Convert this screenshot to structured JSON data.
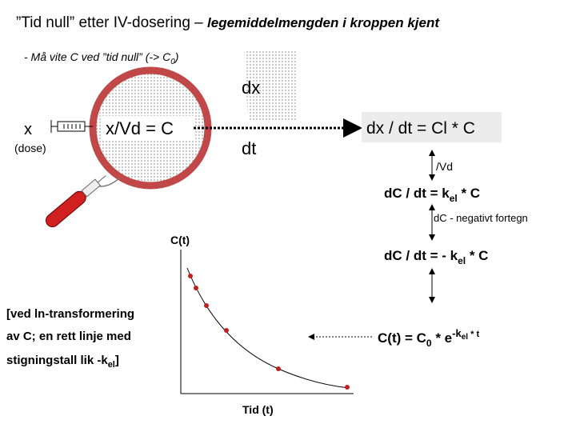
{
  "title": {
    "plain": "”Tid null” etter IV-dosering – ",
    "emphasis": "legemiddelmengden i kroppen kjent"
  },
  "subtitle": {
    "text": "- Må vite C ved ”tid null” (-> C",
    "sub": "0",
    "end": ")"
  },
  "labels": {
    "dx": "dx",
    "dose_x": "x",
    "dose": "(dose)",
    "concentration": "x/Vd = C",
    "dt": "dt",
    "vd": "/Vd",
    "negative": "dC - negativt fortegn",
    "y_axis": "C(t)",
    "x_axis": "Tid (t)"
  },
  "equations": {
    "rate": "dx / dt = Cl * C",
    "conc_rate": {
      "text": "dC / dt = k",
      "sub": "el",
      "end": " * C"
    },
    "neg_rate": {
      "text": "dC / dt = - k",
      "sub": "el",
      "end": " * C"
    },
    "solution": {
      "text": "C(t) = C",
      "sub": "0",
      "mid": " * e",
      "sup": "-k",
      "sup_sub": "el",
      "sup_end": " * t"
    }
  },
  "note": {
    "line1": "[ved ln-transformering",
    "line2": "av C; en rett linje med",
    "line3": "stigningstall lik -k",
    "line3_sub": "el",
    "line3_end": "]"
  }
}
